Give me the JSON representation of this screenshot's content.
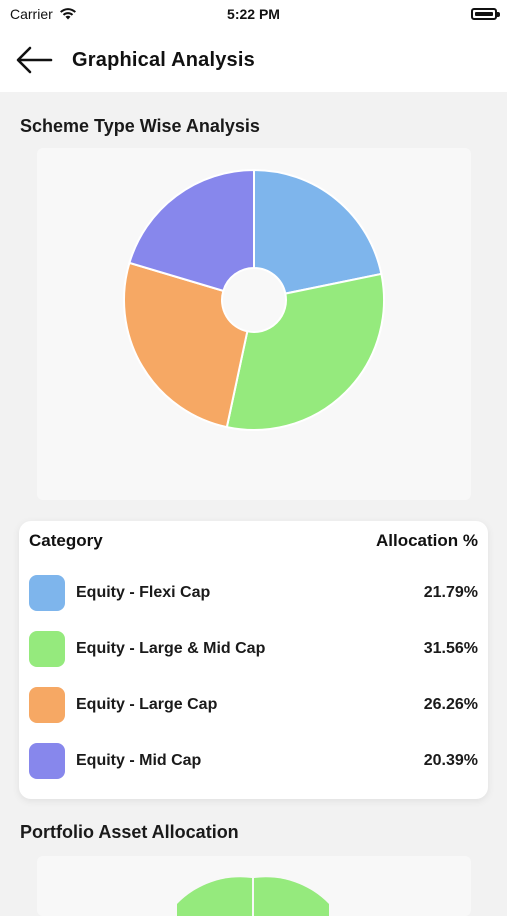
{
  "status": {
    "carrier": "Carrier",
    "time": "5:22 PM"
  },
  "header": {
    "title": "Graphical Analysis"
  },
  "section1": {
    "title": "Scheme Type Wise Analysis"
  },
  "legend": {
    "col_category": "Category",
    "col_allocation": "Allocation %",
    "rows": [
      {
        "label": "Equity - Flexi Cap",
        "value": "21.79%",
        "color": "#7eb5ec"
      },
      {
        "label": "Equity - Large & Mid Cap",
        "value": "31.56%",
        "color": "#95ea7d"
      },
      {
        "label": "Equity - Large Cap",
        "value": "26.26%",
        "color": "#f6a864"
      },
      {
        "label": "Equity - Mid Cap",
        "value": "20.39%",
        "color": "#8787ec"
      }
    ]
  },
  "section2": {
    "title": "Portfolio Asset Allocation"
  },
  "chart_data": [
    {
      "type": "pie",
      "categories": [
        "Equity - Flexi Cap",
        "Equity - Large & Mid Cap",
        "Equity - Large Cap",
        "Equity - Mid Cap"
      ],
      "values": [
        21.79,
        31.56,
        26.26,
        20.39
      ],
      "colors": [
        "#7eb5ec",
        "#95ea7d",
        "#f6a864",
        "#8787ec"
      ],
      "title": "Scheme Type Wise Analysis"
    }
  ]
}
